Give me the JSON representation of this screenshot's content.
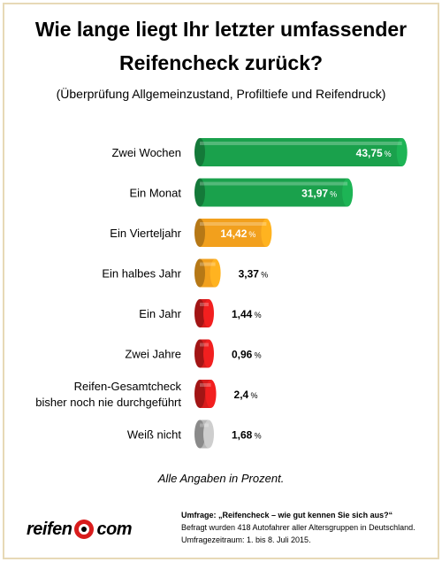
{
  "chart_data": {
    "type": "bar",
    "orientation": "horizontal",
    "title": "Wie lange liegt Ihr letzter umfassender Reifencheck zurück?",
    "subtitle": "(Überprüfung Allgemeinzustand, Profiltiefe und Reifendruck)",
    "categories": [
      "Zwei Wochen",
      "Ein Monat",
      "Ein Vierteljahr",
      "Ein halbes Jahr",
      "Ein Jahr",
      "Zwei Jahre",
      "Reifen-Gesamtcheck bisher noch nie durchgeführt",
      "Weiß  nicht"
    ],
    "values": [
      43.75,
      31.97,
      14.42,
      3.37,
      1.44,
      0.96,
      2.4,
      1.68
    ],
    "value_labels": [
      "43,75",
      "31,97",
      "14,42",
      "3,37",
      "1,44",
      "0,96",
      "2,4",
      "1,68"
    ],
    "unit_label": "%",
    "colors": [
      "#1aa14c",
      "#1aa14c",
      "#f2a01d",
      "#f2a01d",
      "#d81c1c",
      "#d81c1c",
      "#d81c1c",
      "#b8b8b8"
    ],
    "xlim": [
      0,
      44
    ],
    "grid": false,
    "legend": "none"
  },
  "title_lines": [
    "Wie lange liegt Ihr letzter umfassender",
    "Reifencheck zurück?"
  ],
  "subtitle": "(Überprüfung Allgemeinzustand, Profiltiefe und Reifendruck)",
  "footnote": "Alle Angaben in Prozent.",
  "survey": {
    "head": "Umfrage: „Reifencheck – wie gut kennen Sie sich aus?“",
    "line1": "Befragt wurden 418 Autofahrer aller Altersgruppen in Deutschland.",
    "line2": "Umfragezeitraum: 1. bis 8. Juli 2015."
  },
  "logo": {
    "left": "reifen",
    "right": "com",
    "accent_color": "#d81c1c"
  }
}
